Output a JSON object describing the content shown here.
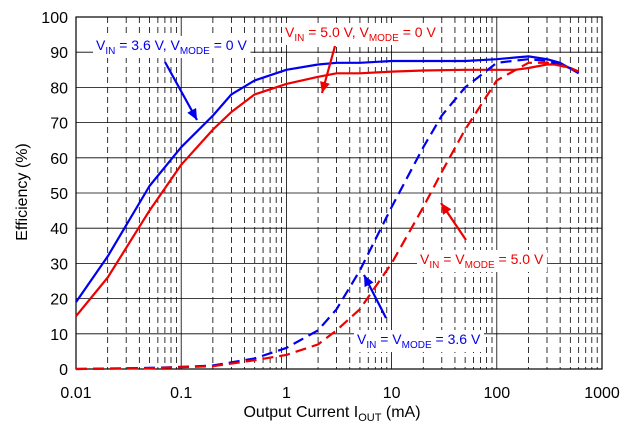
{
  "chart_data": {
    "type": "line",
    "xlabel": "Output Current I",
    "xlabel_sub": "OUT",
    "xlabel_unit": " (mA)",
    "ylabel": "Efficiency  (%)",
    "x_scale": "log",
    "xlim": [
      0.01,
      1000
    ],
    "ylim": [
      0,
      100
    ],
    "grid": true,
    "x_ticks": [
      {
        "value": 0.01,
        "label": "0.01"
      },
      {
        "value": 0.1,
        "label": "0.1"
      },
      {
        "value": 1,
        "label": "1"
      },
      {
        "value": 10,
        "label": "10"
      },
      {
        "value": 100,
        "label": "100"
      },
      {
        "value": 1000,
        "label": "1000"
      }
    ],
    "y_ticks": [
      0,
      10,
      20,
      30,
      40,
      50,
      60,
      70,
      80,
      90,
      100
    ],
    "series": [
      {
        "color": "#0000ee",
        "dash": "solid",
        "points": [
          [
            0.01,
            19
          ],
          [
            0.02,
            32
          ],
          [
            0.05,
            52
          ],
          [
            0.1,
            63
          ],
          [
            0.2,
            72
          ],
          [
            0.3,
            78
          ],
          [
            0.5,
            82
          ],
          [
            1,
            85
          ],
          [
            2,
            86.5
          ],
          [
            3,
            87
          ],
          [
            5,
            87
          ],
          [
            10,
            87.5
          ],
          [
            20,
            87.5
          ],
          [
            50,
            87.5
          ],
          [
            100,
            88
          ],
          [
            150,
            88.5
          ],
          [
            200,
            88.8
          ],
          [
            300,
            88
          ],
          [
            400,
            87
          ],
          [
            600,
            84
          ]
        ]
      },
      {
        "color": "#ee0000",
        "dash": "solid",
        "points": [
          [
            0.01,
            15
          ],
          [
            0.02,
            26
          ],
          [
            0.05,
            45
          ],
          [
            0.1,
            58
          ],
          [
            0.2,
            68
          ],
          [
            0.3,
            73
          ],
          [
            0.5,
            78
          ],
          [
            1,
            81
          ],
          [
            2,
            83
          ],
          [
            3,
            84
          ],
          [
            5,
            84
          ],
          [
            10,
            84.5
          ],
          [
            20,
            84.8
          ],
          [
            50,
            85
          ],
          [
            100,
            85
          ],
          [
            150,
            85
          ],
          [
            200,
            85.5
          ],
          [
            300,
            86.5
          ],
          [
            400,
            86.5
          ],
          [
            600,
            84.5
          ]
        ]
      },
      {
        "color": "#0000ee",
        "dash": "dashed",
        "points": [
          [
            0.01,
            0
          ],
          [
            0.05,
            0.3
          ],
          [
            0.1,
            0.6
          ],
          [
            0.2,
            1
          ],
          [
            0.5,
            3
          ],
          [
            1,
            6
          ],
          [
            2,
            11
          ],
          [
            3,
            17
          ],
          [
            5,
            28
          ],
          [
            10,
            46
          ],
          [
            20,
            63
          ],
          [
            30,
            72
          ],
          [
            50,
            80
          ],
          [
            100,
            87
          ],
          [
            200,
            88
          ],
          [
            300,
            87.5
          ],
          [
            500,
            85.5
          ],
          [
            600,
            84.5
          ]
        ]
      },
      {
        "color": "#ee0000",
        "dash": "dashed",
        "points": [
          [
            0.01,
            0
          ],
          [
            0.05,
            0.2
          ],
          [
            0.1,
            0.5
          ],
          [
            0.2,
            0.8
          ],
          [
            0.5,
            2.5
          ],
          [
            1,
            4
          ],
          [
            2,
            7
          ],
          [
            3,
            11
          ],
          [
            5,
            17
          ],
          [
            10,
            30
          ],
          [
            20,
            46
          ],
          [
            30,
            56
          ],
          [
            50,
            68
          ],
          [
            100,
            82
          ],
          [
            200,
            87
          ],
          [
            300,
            87
          ],
          [
            500,
            85.5
          ],
          [
            600,
            84.5
          ]
        ]
      }
    ],
    "annotations": [
      {
        "id": "vin36-vmode0",
        "color": "#0000ee",
        "parts": [
          [
            "V",
            ""
          ],
          [
            "IN",
            "sub"
          ],
          [
            " = 3.6 V, V",
            ""
          ],
          [
            "MODE",
            "sub"
          ],
          [
            " = 0 V",
            ""
          ]
        ]
      },
      {
        "id": "vin50-vmode0",
        "color": "#ee0000",
        "parts": [
          [
            "V",
            ""
          ],
          [
            "IN",
            "sub"
          ],
          [
            " = 5.0 V, V",
            ""
          ],
          [
            "MODE",
            "sub"
          ],
          [
            " = 0 V",
            ""
          ]
        ]
      },
      {
        "id": "vin-vmode-50",
        "color": "#ee0000",
        "parts": [
          [
            "V",
            ""
          ],
          [
            "IN",
            "sub"
          ],
          [
            " = V",
            ""
          ],
          [
            "MODE",
            "sub"
          ],
          [
            " = 5.0 V",
            ""
          ]
        ]
      },
      {
        "id": "vin-vmode-36",
        "color": "#0000ee",
        "parts": [
          [
            "V",
            ""
          ],
          [
            "IN",
            "sub"
          ],
          [
            " = V",
            ""
          ],
          [
            "MODE",
            "sub"
          ],
          [
            " = 3.6 V",
            ""
          ]
        ]
      }
    ]
  }
}
